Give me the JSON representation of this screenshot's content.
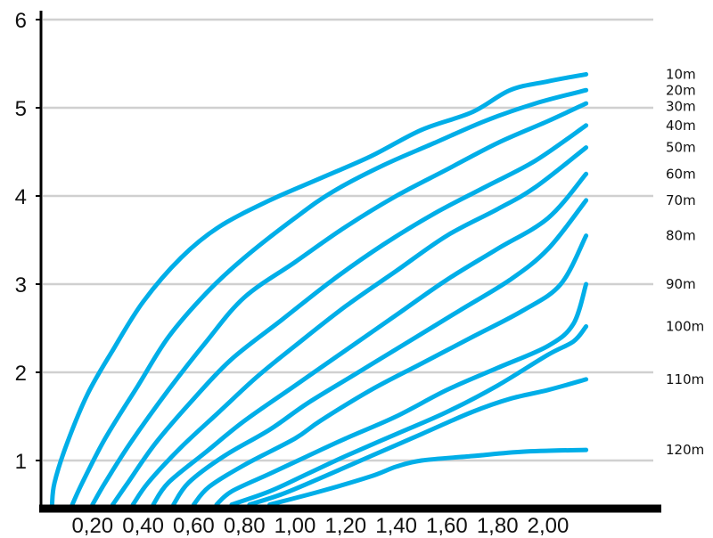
{
  "chart_data": {
    "type": "line",
    "title": "",
    "xlabel": "",
    "ylabel": "",
    "xlim": [
      0,
      2.3
    ],
    "ylim": [
      0.45,
      6.05
    ],
    "x_ticks": [
      {
        "value": 0.2,
        "label": "0,20"
      },
      {
        "value": 0.4,
        "label": "0,40"
      },
      {
        "value": 0.6,
        "label": "0,60"
      },
      {
        "value": 0.8,
        "label": "0,80"
      },
      {
        "value": 1.0,
        "label": "1,00"
      },
      {
        "value": 1.2,
        "label": "1,20"
      },
      {
        "value": 1.4,
        "label": "1,40"
      },
      {
        "value": 1.6,
        "label": "1,60"
      },
      {
        "value": 1.8,
        "label": "1,80"
      },
      {
        "value": 2.0,
        "label": "2,00"
      }
    ],
    "y_ticks": [
      {
        "value": 1,
        "label": "1"
      },
      {
        "value": 2,
        "label": "2"
      },
      {
        "value": 3,
        "label": "3"
      },
      {
        "value": 4,
        "label": "4"
      },
      {
        "value": 5,
        "label": "5"
      },
      {
        "value": 6,
        "label": "6"
      }
    ],
    "gridlines": [
      1,
      2,
      3,
      4,
      5,
      6
    ],
    "grid": true,
    "legend": "end-of-line labels",
    "colors": {
      "series": "#00aee8",
      "grid": "#d0d0d0",
      "axis": "#000000"
    },
    "series": [
      {
        "name": "10m",
        "points": [
          [
            0.04,
            0.5
          ],
          [
            0.05,
            0.75
          ],
          [
            0.1,
            1.2
          ],
          [
            0.18,
            1.75
          ],
          [
            0.28,
            2.25
          ],
          [
            0.4,
            2.8
          ],
          [
            0.55,
            3.3
          ],
          [
            0.7,
            3.65
          ],
          [
            0.9,
            3.95
          ],
          [
            1.1,
            4.2
          ],
          [
            1.3,
            4.45
          ],
          [
            1.5,
            4.75
          ],
          [
            1.7,
            4.95
          ],
          [
            1.85,
            5.2
          ],
          [
            2.0,
            5.3
          ],
          [
            2.15,
            5.38
          ]
        ]
      },
      {
        "name": "20m",
        "points": [
          [
            0.12,
            0.5
          ],
          [
            0.16,
            0.75
          ],
          [
            0.25,
            1.25
          ],
          [
            0.38,
            1.85
          ],
          [
            0.5,
            2.4
          ],
          [
            0.65,
            2.9
          ],
          [
            0.8,
            3.3
          ],
          [
            1.0,
            3.75
          ],
          [
            1.15,
            4.05
          ],
          [
            1.35,
            4.35
          ],
          [
            1.55,
            4.6
          ],
          [
            1.75,
            4.85
          ],
          [
            1.95,
            5.05
          ],
          [
            2.15,
            5.2
          ]
        ]
      },
      {
        "name": "30m",
        "points": [
          [
            0.2,
            0.5
          ],
          [
            0.25,
            0.75
          ],
          [
            0.35,
            1.2
          ],
          [
            0.5,
            1.8
          ],
          [
            0.65,
            2.35
          ],
          [
            0.8,
            2.85
          ],
          [
            1.0,
            3.25
          ],
          [
            1.2,
            3.65
          ],
          [
            1.4,
            4.0
          ],
          [
            1.6,
            4.3
          ],
          [
            1.8,
            4.6
          ],
          [
            2.0,
            4.85
          ],
          [
            2.15,
            5.05
          ]
        ]
      },
      {
        "name": "40m",
        "points": [
          [
            0.28,
            0.5
          ],
          [
            0.34,
            0.75
          ],
          [
            0.45,
            1.2
          ],
          [
            0.6,
            1.7
          ],
          [
            0.75,
            2.15
          ],
          [
            0.95,
            2.6
          ],
          [
            1.15,
            3.05
          ],
          [
            1.35,
            3.45
          ],
          [
            1.55,
            3.8
          ],
          [
            1.75,
            4.1
          ],
          [
            1.95,
            4.4
          ],
          [
            2.15,
            4.8
          ]
        ]
      },
      {
        "name": "50m",
        "points": [
          [
            0.36,
            0.5
          ],
          [
            0.42,
            0.75
          ],
          [
            0.55,
            1.15
          ],
          [
            0.7,
            1.55
          ],
          [
            0.85,
            1.95
          ],
          [
            1.0,
            2.3
          ],
          [
            1.2,
            2.75
          ],
          [
            1.4,
            3.15
          ],
          [
            1.6,
            3.55
          ],
          [
            1.8,
            3.85
          ],
          [
            1.95,
            4.1
          ],
          [
            2.15,
            4.55
          ]
        ]
      },
      {
        "name": "60m",
        "points": [
          [
            0.44,
            0.5
          ],
          [
            0.5,
            0.75
          ],
          [
            0.65,
            1.1
          ],
          [
            0.8,
            1.45
          ],
          [
            1.0,
            1.85
          ],
          [
            1.2,
            2.25
          ],
          [
            1.4,
            2.65
          ],
          [
            1.6,
            3.05
          ],
          [
            1.8,
            3.4
          ],
          [
            2.0,
            3.75
          ],
          [
            2.15,
            4.25
          ]
        ]
      },
      {
        "name": "70m",
        "points": [
          [
            0.52,
            0.5
          ],
          [
            0.58,
            0.75
          ],
          [
            0.72,
            1.05
          ],
          [
            0.9,
            1.35
          ],
          [
            1.05,
            1.65
          ],
          [
            1.25,
            2.0
          ],
          [
            1.45,
            2.35
          ],
          [
            1.65,
            2.7
          ],
          [
            1.85,
            3.05
          ],
          [
            2.0,
            3.4
          ],
          [
            2.15,
            3.95
          ]
        ]
      },
      {
        "name": "80m",
        "points": [
          [
            0.6,
            0.5
          ],
          [
            0.66,
            0.7
          ],
          [
            0.8,
            0.95
          ],
          [
            1.0,
            1.25
          ],
          [
            1.1,
            1.45
          ],
          [
            1.3,
            1.8
          ],
          [
            1.5,
            2.1
          ],
          [
            1.7,
            2.4
          ],
          [
            1.9,
            2.7
          ],
          [
            2.05,
            3.0
          ],
          [
            2.15,
            3.55
          ]
        ]
      },
      {
        "name": "90m",
        "points": [
          [
            0.69,
            0.5
          ],
          [
            0.75,
            0.65
          ],
          [
            0.9,
            0.85
          ],
          [
            1.05,
            1.05
          ],
          [
            1.2,
            1.25
          ],
          [
            1.4,
            1.5
          ],
          [
            1.6,
            1.8
          ],
          [
            1.8,
            2.05
          ],
          [
            2.0,
            2.3
          ],
          [
            2.1,
            2.55
          ],
          [
            2.15,
            3.0
          ]
        ]
      },
      {
        "name": "100m",
        "points": [
          [
            0.75,
            0.5
          ],
          [
            0.9,
            0.65
          ],
          [
            1.05,
            0.85
          ],
          [
            1.2,
            1.05
          ],
          [
            1.4,
            1.3
          ],
          [
            1.6,
            1.55
          ],
          [
            1.8,
            1.85
          ],
          [
            2.0,
            2.2
          ],
          [
            2.1,
            2.35
          ],
          [
            2.15,
            2.52
          ]
        ]
      },
      {
        "name": "110m",
        "points": [
          [
            0.82,
            0.5
          ],
          [
            0.95,
            0.62
          ],
          [
            1.1,
            0.8
          ],
          [
            1.3,
            1.05
          ],
          [
            1.5,
            1.3
          ],
          [
            1.7,
            1.55
          ],
          [
            1.85,
            1.7
          ],
          [
            2.0,
            1.8
          ],
          [
            2.15,
            1.92
          ]
        ]
      },
      {
        "name": "120m",
        "points": [
          [
            0.9,
            0.5
          ],
          [
            1.1,
            0.65
          ],
          [
            1.3,
            0.82
          ],
          [
            1.4,
            0.93
          ],
          [
            1.5,
            1.0
          ],
          [
            1.7,
            1.05
          ],
          [
            1.9,
            1.1
          ],
          [
            2.15,
            1.12
          ]
        ]
      }
    ]
  }
}
